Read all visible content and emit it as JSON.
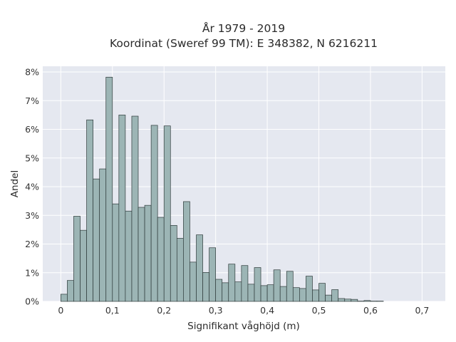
{
  "colors": {
    "plot_background": "#E5E8F0",
    "grid": "#FFFFFF",
    "bar_fill": "#9CB5B5",
    "bar_edge": "#2F3B3B",
    "text": "#2A2A2A"
  },
  "chart_data": {
    "type": "bar",
    "title": "År 1979 - 2019",
    "subtitle": "Koordinat (Sweref 99 TM): E 348382, N 6216211",
    "xlabel": "Signifikant våghöjd (m)",
    "ylabel": "Andel",
    "xlim": [
      -0.035,
      0.745
    ],
    "ylim": [
      0,
      0.082
    ],
    "x_ticks": [
      0,
      0.1,
      0.2,
      0.3,
      0.4,
      0.5,
      0.6,
      0.7
    ],
    "x_tick_labels": [
      "0",
      "0,1",
      "0,2",
      "0,3",
      "0,4",
      "0,5",
      "0,6",
      "0,7"
    ],
    "y_ticks": [
      0,
      0.01,
      0.02,
      0.03,
      0.04,
      0.05,
      0.06,
      0.07,
      0.08
    ],
    "y_tick_labels": [
      "0%",
      "1%",
      "2%",
      "3%",
      "4%",
      "5%",
      "6%",
      "7%",
      "8%"
    ],
    "grid": true,
    "bin_width": 0.0125,
    "bin_starts": [
      0,
      0.0125,
      0.025,
      0.0375,
      0.05,
      0.0625,
      0.075,
      0.0875,
      0.1,
      0.1125,
      0.125,
      0.1375,
      0.15,
      0.1625,
      0.175,
      0.1875,
      0.2,
      0.2125,
      0.225,
      0.2375,
      0.25,
      0.2625,
      0.275,
      0.2875,
      0.3,
      0.3125,
      0.325,
      0.3375,
      0.35,
      0.3625,
      0.375,
      0.3875,
      0.4,
      0.4125,
      0.425,
      0.4375,
      0.45,
      0.4625,
      0.475,
      0.4875,
      0.5,
      0.5125,
      0.525,
      0.5375,
      0.55,
      0.5625,
      0.575,
      0.5875,
      0.6,
      0.6125,
      0.625,
      0.6375,
      0.65,
      0.6625,
      0.675,
      0.6875
    ],
    "values": [
      0.0025,
      0.0073,
      0.0297,
      0.0248,
      0.0633,
      0.0427,
      0.0462,
      0.0782,
      0.034,
      0.065,
      0.0315,
      0.0646,
      0.0328,
      0.0335,
      0.0614,
      0.0293,
      0.0612,
      0.0265,
      0.022,
      0.0348,
      0.0137,
      0.0232,
      0.0101,
      0.0187,
      0.0077,
      0.0065,
      0.013,
      0.0068,
      0.0125,
      0.006,
      0.0118,
      0.0055,
      0.0058,
      0.011,
      0.0052,
      0.0105,
      0.0048,
      0.0045,
      0.0088,
      0.004,
      0.0063,
      0.0022,
      0.0041,
      0.001,
      0.0008,
      0.0007,
      0.0001,
      0.0003,
      0.0001,
      0.0001,
      0,
      0,
      0,
      0,
      0,
      0
    ]
  }
}
